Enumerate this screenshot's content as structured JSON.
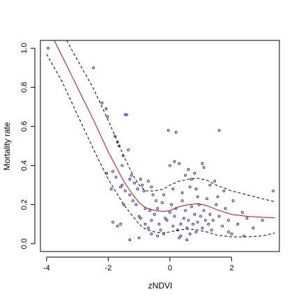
{
  "chart_data": {
    "type": "scatter",
    "title": "",
    "xlabel": "zNDVI",
    "ylabel": "Mortality rate",
    "xlim": [
      -4.2,
      3.55
    ],
    "ylim": [
      -0.04,
      1.04
    ],
    "x_ticks": [
      -4,
      -2,
      0,
      2
    ],
    "x_tick_labels": [
      "-4",
      "-2",
      "0",
      "2"
    ],
    "y_ticks": [
      0.0,
      0.2,
      0.4,
      0.6,
      0.8,
      1.0
    ],
    "y_tick_labels": [
      "0.0",
      "0.2",
      "0.4",
      "0.6",
      "0.8",
      "1.0"
    ],
    "grid": false,
    "legend": "none",
    "colors": {
      "points": "#0000cc",
      "fit": "#e00000",
      "band": "#000000"
    },
    "series": [
      {
        "kind": "points",
        "points": [
          [
            -3.95,
            1.0
          ],
          [
            -2.48,
            0.9
          ],
          [
            -2.2,
            0.72
          ],
          [
            -2.07,
            0.69
          ],
          [
            -2.02,
            0.65
          ],
          [
            -1.78,
            0.55
          ],
          [
            -1.7,
            0.52
          ],
          [
            -1.65,
            0.5
          ],
          [
            -1.52,
            0.45
          ],
          [
            -1.45,
            0.66
          ],
          [
            -1.4,
            0.66
          ],
          [
            -1.55,
            0.4
          ],
          [
            -1.35,
            0.48
          ],
          [
            -1.3,
            0.33
          ],
          [
            -1.25,
            0.35
          ],
          [
            -1.9,
            0.28
          ],
          [
            -1.6,
            0.29
          ],
          [
            -1.55,
            0.3
          ],
          [
            -1.45,
            0.27
          ],
          [
            -1.3,
            0.25
          ],
          [
            -1.2,
            0.22
          ],
          [
            -1.1,
            0.2
          ],
          [
            -0.95,
            0.33
          ],
          [
            -0.9,
            0.3
          ],
          [
            -0.85,
            0.27
          ],
          [
            -0.7,
            0.32
          ],
          [
            -0.6,
            0.29
          ],
          [
            -0.55,
            0.25
          ],
          [
            -1.0,
            0.14
          ],
          [
            -0.95,
            0.13
          ],
          [
            -0.8,
            0.1
          ],
          [
            -0.7,
            0.08
          ],
          [
            -0.6,
            0.12
          ],
          [
            -0.5,
            0.15
          ],
          [
            -0.4,
            0.18
          ],
          [
            -0.35,
            0.1
          ],
          [
            -0.3,
            0.07
          ],
          [
            -0.2,
            0.05
          ],
          [
            -0.1,
            0.12
          ],
          [
            0.0,
            0.16
          ],
          [
            0.05,
            0.2
          ],
          [
            0.1,
            0.09
          ],
          [
            0.15,
            0.14
          ],
          [
            0.2,
            0.18
          ],
          [
            0.25,
            0.07
          ],
          [
            0.3,
            0.03
          ],
          [
            0.35,
            0.1
          ],
          [
            0.4,
            0.22
          ],
          [
            0.45,
            0.13
          ],
          [
            0.5,
            0.17
          ],
          [
            0.55,
            0.08
          ],
          [
            0.6,
            0.12
          ],
          [
            0.65,
            0.05
          ],
          [
            0.7,
            0.19
          ],
          [
            0.75,
            0.1
          ],
          [
            0.8,
            0.15
          ],
          [
            0.85,
            0.06
          ],
          [
            0.9,
            0.11
          ],
          [
            0.95,
            0.2
          ],
          [
            1.0,
            0.14
          ],
          [
            1.05,
            0.08
          ],
          [
            1.1,
            0.17
          ],
          [
            1.15,
            0.12
          ],
          [
            1.2,
            0.23
          ],
          [
            1.25,
            0.1
          ],
          [
            1.3,
            0.15
          ],
          [
            1.35,
            0.07
          ],
          [
            1.4,
            0.12
          ],
          [
            1.5,
            0.2
          ],
          [
            1.6,
            0.14
          ],
          [
            1.7,
            0.09
          ],
          [
            1.8,
            0.18
          ],
          [
            1.9,
            0.12
          ],
          [
            2.0,
            0.05
          ],
          [
            2.2,
            0.1
          ],
          [
            2.35,
            0.16
          ],
          [
            2.5,
            0.13
          ],
          [
            2.7,
            0.08
          ],
          [
            3.0,
            0.12
          ],
          [
            3.35,
            0.27
          ],
          [
            -0.05,
            0.58
          ],
          [
            0.2,
            0.57
          ],
          [
            1.6,
            0.58
          ],
          [
            0.0,
            0.4
          ],
          [
            0.15,
            0.42
          ],
          [
            0.3,
            0.41
          ],
          [
            0.5,
            0.35
          ],
          [
            0.6,
            0.38
          ],
          [
            0.7,
            0.33
          ],
          [
            0.8,
            0.36
          ],
          [
            1.05,
            0.41
          ],
          [
            1.1,
            0.39
          ],
          [
            1.3,
            0.3
          ],
          [
            1.45,
            0.32
          ],
          [
            -0.2,
            0.25
          ],
          [
            0.1,
            0.28
          ],
          [
            0.4,
            0.26
          ],
          [
            0.65,
            0.29
          ],
          [
            0.9,
            0.24
          ],
          [
            -1.6,
            0.1
          ],
          [
            -1.3,
            0.02
          ],
          [
            -1.0,
            0.03
          ],
          [
            -0.6,
            0.05
          ],
          [
            -0.4,
            0.04
          ],
          [
            -1.85,
            0.11
          ],
          [
            -1.7,
            0.09
          ],
          [
            -2.05,
            0.36
          ],
          [
            -1.85,
            0.37
          ],
          [
            -1.75,
            0.34
          ],
          [
            -0.45,
            0.22
          ],
          [
            -0.25,
            0.21
          ],
          [
            -0.15,
            0.13
          ],
          [
            0.85,
            0.28
          ],
          [
            1.55,
            0.24
          ],
          [
            2.05,
            0.22
          ],
          [
            1.9,
            0.06
          ],
          [
            2.4,
            0.04
          ],
          [
            -0.8,
            0.18
          ],
          [
            -0.65,
            0.17
          ],
          [
            0.35,
            0.04
          ],
          [
            0.55,
            0.02
          ],
          [
            1.75,
            0.27
          ],
          [
            -1.15,
            0.31
          ],
          [
            -1.05,
            0.28
          ],
          [
            -1.5,
            0.2
          ]
        ]
      },
      {
        "kind": "fit",
        "style": "solid",
        "points": [
          [
            -3.75,
            1.04
          ],
          [
            -3.5,
            0.96
          ],
          [
            -3.0,
            0.8
          ],
          [
            -2.5,
            0.64
          ],
          [
            -2.0,
            0.47
          ],
          [
            -1.5,
            0.32
          ],
          [
            -1.2,
            0.25
          ],
          [
            -1.0,
            0.21
          ],
          [
            -0.8,
            0.185
          ],
          [
            -0.5,
            0.17
          ],
          [
            -0.2,
            0.165
          ],
          [
            0.0,
            0.17
          ],
          [
            0.3,
            0.19
          ],
          [
            0.6,
            0.2
          ],
          [
            0.9,
            0.205
          ],
          [
            1.2,
            0.195
          ],
          [
            1.5,
            0.175
          ],
          [
            2.0,
            0.15
          ],
          [
            2.5,
            0.14
          ],
          [
            3.0,
            0.135
          ],
          [
            3.4,
            0.133
          ]
        ]
      },
      {
        "kind": "upper-band",
        "style": "dashed",
        "points": [
          [
            -3.35,
            1.04
          ],
          [
            -3.0,
            0.94
          ],
          [
            -2.5,
            0.8
          ],
          [
            -2.0,
            0.63
          ],
          [
            -1.5,
            0.45
          ],
          [
            -1.2,
            0.35
          ],
          [
            -1.0,
            0.3
          ],
          [
            -0.8,
            0.27
          ],
          [
            -0.5,
            0.27
          ],
          [
            -0.2,
            0.28
          ],
          [
            0.0,
            0.3
          ],
          [
            0.3,
            0.32
          ],
          [
            0.6,
            0.33
          ],
          [
            0.9,
            0.335
          ],
          [
            1.2,
            0.325
          ],
          [
            1.5,
            0.3
          ],
          [
            2.0,
            0.27
          ],
          [
            2.5,
            0.25
          ],
          [
            3.0,
            0.23
          ],
          [
            3.4,
            0.215
          ]
        ]
      },
      {
        "kind": "lower-band",
        "style": "dashed",
        "points": [
          [
            -4.0,
            0.97
          ],
          [
            -3.5,
            0.83
          ],
          [
            -3.0,
            0.66
          ],
          [
            -2.5,
            0.49
          ],
          [
            -2.0,
            0.33
          ],
          [
            -1.5,
            0.2
          ],
          [
            -1.2,
            0.14
          ],
          [
            -1.0,
            0.1
          ],
          [
            -0.8,
            0.075
          ],
          [
            -0.5,
            0.06
          ],
          [
            -0.2,
            0.055
          ],
          [
            0.0,
            0.06
          ],
          [
            0.3,
            0.07
          ],
          [
            0.6,
            0.075
          ],
          [
            0.9,
            0.07
          ],
          [
            1.2,
            0.06
          ],
          [
            1.5,
            0.045
          ],
          [
            2.0,
            0.035
          ],
          [
            2.5,
            0.035
          ],
          [
            3.0,
            0.04
          ],
          [
            3.4,
            0.055
          ]
        ]
      }
    ]
  }
}
